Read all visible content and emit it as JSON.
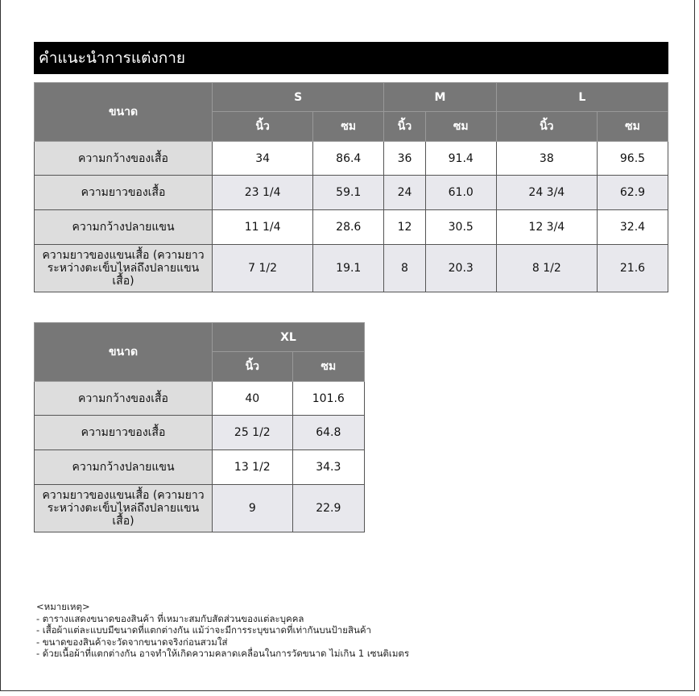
{
  "title": "คำแนะนำการแต่งกาย",
  "size_header": "ขนาด",
  "unit_inch": "นิ้ว",
  "unit_cm": "ซม",
  "rows": [
    "ความกว้างของเสื้อ",
    "ความยาวของเสื้อ",
    "ความกว้างปลายแขน",
    "ความยาวของแขนเสื้อ (ความยาวระหว่างตะเข็บไหล่ถึงปลายแขนเสื้อ)"
  ],
  "table1": {
    "sizes": [
      "S",
      "M",
      "L"
    ],
    "values": [
      [
        "34",
        "86.4",
        "36",
        "91.4",
        "38",
        "96.5"
      ],
      [
        "23 1/4",
        "59.1",
        "24",
        "61.0",
        "24 3/4",
        "62.9"
      ],
      [
        "11 1/4",
        "28.6",
        "12",
        "30.5",
        "12 3/4",
        "32.4"
      ],
      [
        "7 1/2",
        "19.1",
        "8",
        "20.3",
        "8 1/2",
        "21.6"
      ]
    ]
  },
  "table2": {
    "sizes": [
      "XL"
    ],
    "values": [
      [
        "40",
        "101.6"
      ],
      [
        "25 1/2",
        "64.8"
      ],
      [
        "13 1/2",
        "34.3"
      ],
      [
        "9",
        "22.9"
      ]
    ]
  },
  "notes": {
    "heading": "<หมายเหตุ>",
    "items": [
      "- ตารางแสดงขนาดของสินค้า ที่เหมาะสมกับสัดส่วนของแต่ละบุคคล",
      "- เสื้อผ้าแต่ละแบบมีขนาดที่แตกต่างกัน แม้ว่าจะมีการระบุขนาดที่เท่ากันบนป้ายสินค้า",
      "- ขนาดของสินค้าจะวัดจากขนาดจริงก่อนสวมใส่",
      "- ด้วยเนื้อผ้าที่แตกต่างกัน อาจทำให้เกิดความคลาดเคลื่อนในการวัดขนาด ไม่เกิน 1 เซนติเมตร"
    ]
  }
}
